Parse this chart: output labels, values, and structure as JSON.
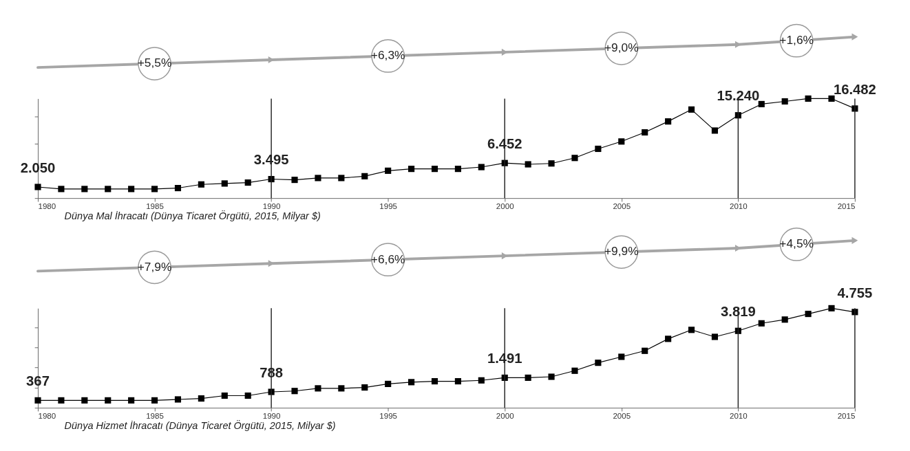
{
  "chart_data": [
    {
      "type": "line",
      "title": "Dünya Mal İhracatı (Dünya Ticaret Örgütü, 2015, Milyar $)",
      "x": [
        1980,
        1981,
        1982,
        1983,
        1984,
        1985,
        1986,
        1987,
        1988,
        1989,
        1990,
        1991,
        1992,
        1993,
        1994,
        1995,
        1996,
        1997,
        1998,
        1999,
        2000,
        2001,
        2002,
        2003,
        2004,
        2005,
        2006,
        2007,
        2008,
        2009,
        2010,
        2011,
        2012,
        2013,
        2014,
        2015
      ],
      "xlim": [
        1980,
        2015
      ],
      "xticks": [
        1980,
        1985,
        1990,
        1995,
        2000,
        2005,
        2010,
        2015
      ],
      "grid": false,
      "marker": "square",
      "tick_labels": "x",
      "series": [
        {
          "color": "#000000",
          "values": [
            2050,
            1680,
            1680,
            1680,
            1680,
            1680,
            1850,
            2520,
            2690,
            2860,
            3495,
            3360,
            3700,
            3700,
            4030,
            5040,
            5380,
            5380,
            5380,
            5710,
            6452,
            6220,
            6380,
            7390,
            9070,
            10420,
            12100,
            14110,
            16300,
            12430,
            15240,
            17300,
            17800,
            18310,
            18310,
            16482
          ],
          "value_labels": [
            "2.050",
            null,
            null,
            null,
            null,
            null,
            null,
            null,
            null,
            null,
            "3.495",
            null,
            null,
            null,
            null,
            null,
            null,
            null,
            null,
            null,
            "6.452",
            null,
            null,
            null,
            null,
            null,
            null,
            null,
            null,
            null,
            "15.240",
            null,
            null,
            null,
            null,
            "16.482"
          ]
        }
      ],
      "ref_lines": [
        {
          "axis": "x",
          "value": 1990
        },
        {
          "axis": "x",
          "value": 2000
        },
        {
          "axis": "x",
          "value": 2010
        }
      ],
      "annotations": [
        "+5,5%",
        "+6,3%",
        "+9,0%",
        "+1,6%"
      ]
    },
    {
      "type": "line",
      "title": "Dünya Hizmet İhracatı (Dünya Ticaret Örgütü, 2015, Milyar $)",
      "x": [
        1980,
        1981,
        1982,
        1983,
        1984,
        1985,
        1986,
        1987,
        1988,
        1989,
        1990,
        1991,
        1992,
        1993,
        1994,
        1995,
        1996,
        1997,
        1998,
        1999,
        2000,
        2001,
        2002,
        2003,
        2004,
        2005,
        2006,
        2007,
        2008,
        2009,
        2010,
        2011,
        2012,
        2013,
        2014,
        2015
      ],
      "xlim": [
        1980,
        2015
      ],
      "xticks": [
        1980,
        1985,
        1990,
        1995,
        2000,
        2005,
        2010,
        2015
      ],
      "grid": false,
      "marker": "square",
      "tick_labels": "x",
      "series": [
        {
          "color": "#000000",
          "values": [
            367,
            367,
            367,
            367,
            367,
            367,
            414,
            461,
            601,
            601,
            788,
            832,
            964,
            964,
            1008,
            1184,
            1272,
            1316,
            1316,
            1360,
            1491,
            1491,
            1540,
            1838,
            2234,
            2531,
            2828,
            3422,
            3868,
            3521,
            3819,
            4193,
            4380,
            4661,
            4942,
            4755
          ],
          "value_labels": [
            "367",
            null,
            null,
            null,
            null,
            null,
            null,
            null,
            null,
            null,
            "788",
            null,
            null,
            null,
            null,
            null,
            null,
            null,
            null,
            null,
            "1.491",
            null,
            null,
            null,
            null,
            null,
            null,
            null,
            null,
            null,
            "3.819",
            null,
            null,
            null,
            null,
            "4.755"
          ]
        }
      ],
      "ref_lines": [
        {
          "axis": "x",
          "value": 1990
        },
        {
          "axis": "x",
          "value": 2000
        },
        {
          "axis": "x",
          "value": 2010
        }
      ],
      "annotations": [
        "+7,9%",
        "+6,6%",
        "+9,9%",
        "+4,5%"
      ]
    }
  ]
}
